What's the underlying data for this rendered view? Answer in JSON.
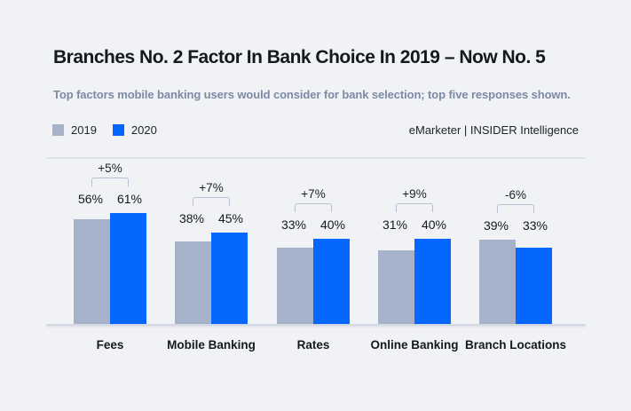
{
  "page": {
    "background": "#f0f2f5"
  },
  "chart_data": {
    "type": "bar",
    "title": "Branches No. 2 Factor In Bank Choice In 2019 – Now No. 5",
    "subtitle": "Top factors mobile banking users would consider for bank selection; top five responses shown.",
    "source": "eMarketer | INSIDER Intelligence",
    "categories": [
      "Fees",
      "Mobile Banking",
      "Rates",
      "Online Banking",
      "Branch Locations"
    ],
    "series": [
      {
        "name": "2019",
        "color": "#a6b2c9",
        "values": [
          56,
          38,
          33,
          31,
          39
        ]
      },
      {
        "name": "2020",
        "color": "#0667fe",
        "values": [
          61,
          45,
          40,
          40,
          33
        ]
      }
    ],
    "deltas": [
      "+5%",
      "+7%",
      "+7%",
      "+9%",
      "-6%"
    ],
    "unit": "%",
    "legend_position": "top-left",
    "grid": false,
    "annotation_style": "bracket-over-pair"
  }
}
